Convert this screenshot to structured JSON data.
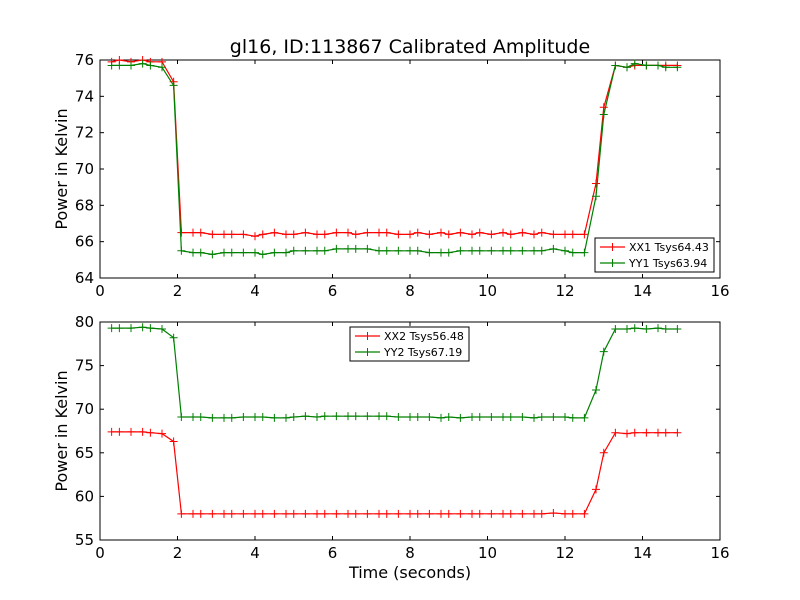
{
  "chart_data": [
    {
      "type": "line",
      "title": "gl16, ID:113867 Calibrated Amplitude",
      "xlabel": "",
      "ylabel": "Power in Kelvin",
      "xlim": [
        0,
        16
      ],
      "ylim": [
        64,
        76
      ],
      "xticks": [
        "0",
        "2",
        "4",
        "6",
        "8",
        "10",
        "12",
        "14",
        "16"
      ],
      "yticks": [
        "64",
        "66",
        "68",
        "70",
        "72",
        "74",
        "76"
      ],
      "legend_position": "lower right",
      "x": [
        0.3,
        0.5,
        0.8,
        1.1,
        1.3,
        1.6,
        1.9,
        2.1,
        2.4,
        2.6,
        2.9,
        3.2,
        3.4,
        3.7,
        4.0,
        4.2,
        4.5,
        4.8,
        5.0,
        5.3,
        5.6,
        5.8,
        6.1,
        6.4,
        6.6,
        6.9,
        7.2,
        7.4,
        7.7,
        8.0,
        8.2,
        8.5,
        8.8,
        9.0,
        9.3,
        9.6,
        9.8,
        10.1,
        10.4,
        10.6,
        10.9,
        11.2,
        11.4,
        11.7,
        12.0,
        12.2,
        12.5,
        12.8,
        13.0,
        13.3,
        13.6,
        13.8,
        14.1,
        14.4,
        14.6,
        14.9
      ],
      "series": [
        {
          "name": "XX1 Tsys64.43",
          "color": "#ff0000",
          "values": [
            75.9,
            76.0,
            75.9,
            76.0,
            75.9,
            75.9,
            74.8,
            66.5,
            66.5,
            66.5,
            66.4,
            66.4,
            66.4,
            66.4,
            66.3,
            66.4,
            66.5,
            66.4,
            66.4,
            66.5,
            66.4,
            66.4,
            66.5,
            66.5,
            66.4,
            66.5,
            66.5,
            66.5,
            66.4,
            66.4,
            66.5,
            66.4,
            66.5,
            66.4,
            66.5,
            66.4,
            66.5,
            66.4,
            66.5,
            66.4,
            66.5,
            66.4,
            66.5,
            66.4,
            66.4,
            66.4,
            66.4,
            69.2,
            73.4,
            75.7,
            75.6,
            75.7,
            75.7,
            75.7,
            75.7,
            75.7
          ]
        },
        {
          "name": "YY1 Tsys63.94",
          "color": "#008000",
          "values": [
            75.7,
            75.7,
            75.7,
            75.8,
            75.7,
            75.6,
            74.6,
            65.5,
            65.4,
            65.4,
            65.3,
            65.4,
            65.4,
            65.4,
            65.4,
            65.3,
            65.4,
            65.4,
            65.5,
            65.5,
            65.5,
            65.5,
            65.6,
            65.6,
            65.6,
            65.6,
            65.5,
            65.5,
            65.5,
            65.5,
            65.5,
            65.4,
            65.4,
            65.4,
            65.5,
            65.5,
            65.5,
            65.5,
            65.5,
            65.5,
            65.5,
            65.5,
            65.5,
            65.6,
            65.5,
            65.4,
            65.4,
            68.5,
            73.0,
            75.7,
            75.6,
            75.8,
            75.7,
            75.7,
            75.6,
            75.6
          ]
        }
      ]
    },
    {
      "type": "line",
      "title": "",
      "xlabel": "Time (seconds)",
      "ylabel": "Power in Kelvin",
      "xlim": [
        0,
        16
      ],
      "ylim": [
        55,
        80
      ],
      "xticks": [
        "0",
        "2",
        "4",
        "6",
        "8",
        "10",
        "12",
        "14",
        "16"
      ],
      "yticks": [
        "55",
        "60",
        "65",
        "70",
        "75",
        "80"
      ],
      "legend_position": "upper center",
      "x": [
        0.3,
        0.5,
        0.8,
        1.1,
        1.3,
        1.6,
        1.9,
        2.1,
        2.4,
        2.6,
        2.9,
        3.2,
        3.4,
        3.7,
        4.0,
        4.2,
        4.5,
        4.8,
        5.0,
        5.3,
        5.6,
        5.8,
        6.1,
        6.4,
        6.6,
        6.9,
        7.2,
        7.4,
        7.7,
        8.0,
        8.2,
        8.5,
        8.8,
        9.0,
        9.3,
        9.6,
        9.8,
        10.1,
        10.4,
        10.6,
        10.9,
        11.2,
        11.4,
        11.7,
        12.0,
        12.2,
        12.5,
        12.8,
        13.0,
        13.3,
        13.6,
        13.8,
        14.1,
        14.4,
        14.6,
        14.9
      ],
      "series": [
        {
          "name": "XX2 Tsys56.48",
          "color": "#ff0000",
          "values": [
            67.4,
            67.4,
            67.4,
            67.4,
            67.3,
            67.2,
            66.3,
            58.0,
            58.0,
            58.0,
            58.0,
            58.0,
            58.0,
            58.0,
            58.0,
            58.0,
            58.0,
            58.0,
            58.0,
            58.0,
            58.0,
            58.0,
            58.0,
            58.0,
            58.0,
            58.0,
            58.0,
            58.0,
            58.0,
            58.0,
            58.0,
            58.0,
            58.0,
            58.0,
            58.0,
            58.0,
            58.0,
            58.0,
            58.0,
            58.0,
            58.0,
            58.0,
            58.0,
            58.1,
            58.0,
            58.0,
            58.0,
            60.8,
            65.0,
            67.3,
            67.2,
            67.3,
            67.3,
            67.3,
            67.3,
            67.3
          ]
        },
        {
          "name": "YY2 Tsys67.19",
          "color": "#008000",
          "values": [
            79.3,
            79.3,
            79.3,
            79.4,
            79.3,
            79.2,
            78.2,
            69.1,
            69.1,
            69.1,
            69.0,
            69.0,
            69.0,
            69.1,
            69.1,
            69.1,
            69.0,
            69.0,
            69.1,
            69.2,
            69.1,
            69.2,
            69.2,
            69.2,
            69.2,
            69.2,
            69.2,
            69.2,
            69.1,
            69.1,
            69.1,
            69.1,
            69.0,
            69.1,
            69.0,
            69.1,
            69.1,
            69.1,
            69.1,
            69.1,
            69.1,
            69.0,
            69.1,
            69.1,
            69.1,
            69.0,
            69.0,
            72.2,
            76.6,
            79.2,
            79.2,
            79.3,
            79.2,
            79.3,
            79.2,
            79.2
          ]
        }
      ]
    }
  ]
}
